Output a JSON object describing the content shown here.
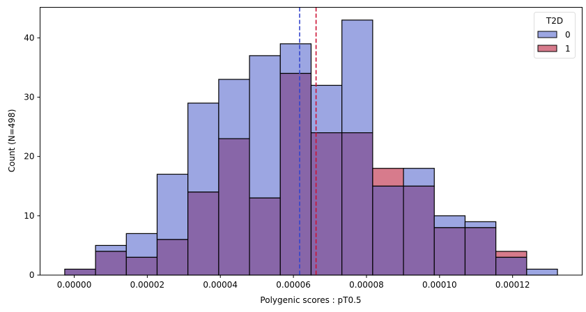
{
  "chart_data": {
    "type": "bar",
    "subtype": "overlaid-histogram",
    "xlabel": "Polygenic scores : pT0.5",
    "ylabel": "Count (N=498)",
    "xlim": [
      -9.35e-06,
      0.00013904
    ],
    "ylim": [
      0,
      45.15
    ],
    "bin_start": -2.6e-06,
    "bin_width": 8.43e-06,
    "x_ticks": [
      0,
      2e-05,
      4e-05,
      6e-05,
      8e-05,
      0.0001,
      0.00012
    ],
    "x_tick_labels": [
      "0.00000",
      "0.00002",
      "0.00004",
      "0.00006",
      "0.00008",
      "0.00010",
      "0.00012"
    ],
    "y_ticks": [
      0,
      10,
      20,
      30,
      40
    ],
    "y_tick_labels": [
      "0",
      "10",
      "20",
      "30",
      "40"
    ],
    "legend": {
      "title": "T2D",
      "placement": "top-right",
      "entries": [
        "0",
        "1"
      ]
    },
    "series": [
      {
        "name": "0",
        "color": "#9ca6e2",
        "values": [
          1,
          5,
          7,
          17,
          29,
          33,
          37,
          39,
          32,
          43,
          15,
          18,
          10,
          9,
          3,
          1
        ]
      },
      {
        "name": "1",
        "color": "#d77b8c",
        "values": [
          1,
          4,
          3,
          6,
          14,
          23,
          13,
          34,
          24,
          24,
          18,
          15,
          8,
          8,
          4,
          0
        ]
      }
    ],
    "overlap_color": "#8866a8",
    "mean_lines": [
      {
        "series": "0",
        "x": 6.17e-05,
        "color": "#3344cc"
      },
      {
        "series": "1",
        "x": 6.62e-05,
        "color": "#cc1133"
      }
    ]
  }
}
